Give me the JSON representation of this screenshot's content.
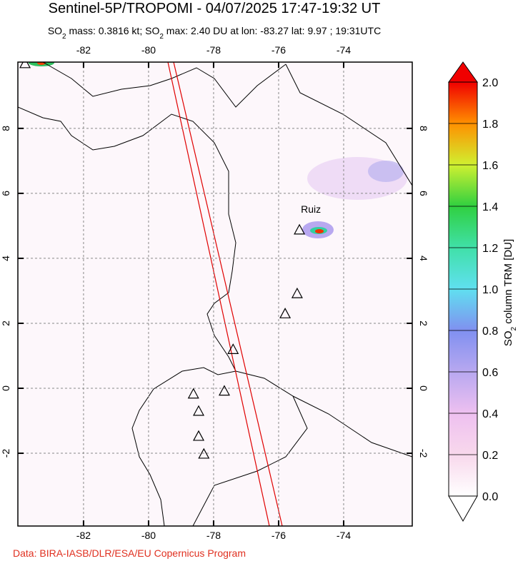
{
  "title": "Sentinel-5P/TROPOMI - 04/07/2025 17:47-19:32 UT",
  "subtitle": [
    "SO",
    "2",
    " mass: 0.3816 kt; SO",
    "2",
    " max: 2.40 DU at lon: -83.27 lat: 9.97 ; 19:31UTC"
  ],
  "map": {
    "lonlim": [
      -84.02,
      -71.89
    ],
    "latlim": [
      -4.24,
      10.04
    ],
    "lonticks": [
      -82,
      -80,
      -78,
      -76,
      -74
    ],
    "latticks": [
      8,
      6,
      4,
      2,
      0,
      -2
    ],
    "volcanoes": [
      {
        "lon": -83.8,
        "lat": 10.0
      },
      {
        "lon": -75.36,
        "lat": 4.88,
        "label": "Ruiz"
      },
      {
        "lon": -75.43,
        "lat": 2.92
      },
      {
        "lon": -75.8,
        "lat": 2.3
      },
      {
        "lon": -77.4,
        "lat": 1.2
      },
      {
        "lon": -77.67,
        "lat": -0.08
      },
      {
        "lon": -78.62,
        "lat": -0.17
      },
      {
        "lon": -78.46,
        "lat": -0.7
      },
      {
        "lon": -78.46,
        "lat": -1.47
      },
      {
        "lon": -78.3,
        "lat": -2.02
      }
    ]
  },
  "colorbar": {
    "label": [
      "SO",
      "2",
      " column TRM [DU]"
    ],
    "lim": [
      0,
      2
    ],
    "ticks": [
      {
        "value": 0,
        "label": "0.0"
      },
      0.2,
      0.4,
      0.6,
      0.8,
      {
        "value": 1,
        "label": "1.0"
      },
      1.2,
      1.4,
      1.6,
      1.8,
      {
        "value": 2,
        "label": "2.0"
      }
    ]
  },
  "footer": "Data: BIRA-IASB/DLR/ESA/EU Copernicus Program"
}
